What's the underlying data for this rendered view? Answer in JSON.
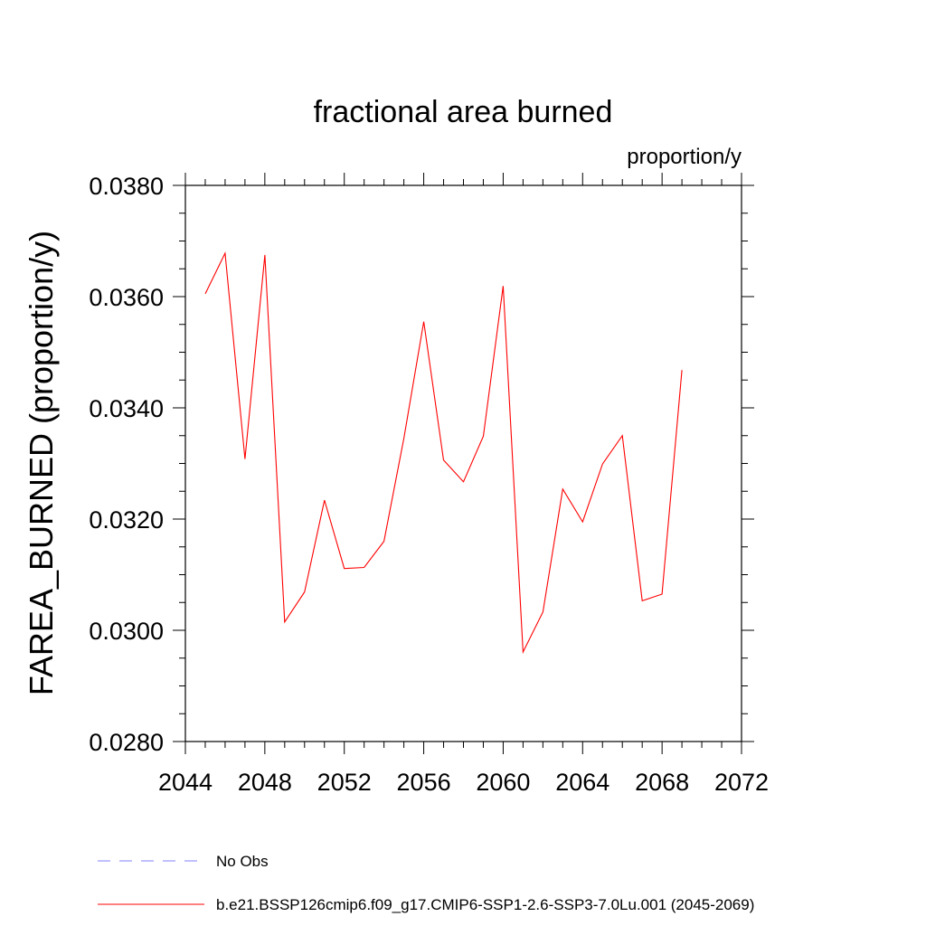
{
  "chart_data": {
    "type": "line",
    "title": "fractional area burned",
    "units_label": "proportion/y",
    "ylabel": "FAREA_BURNED  (proportion/y)",
    "xlabel": "",
    "xlim": [
      2044,
      2072
    ],
    "ylim": [
      0.028,
      0.038
    ],
    "x_ticks": [
      "2044",
      "2048",
      "2052",
      "2056",
      "2060",
      "2064",
      "2068",
      "2072"
    ],
    "y_ticks": [
      "0.0280",
      "0.0300",
      "0.0320",
      "0.0340",
      "0.0360",
      "0.0380"
    ],
    "grid": false,
    "legend_position": "bottom",
    "series": [
      {
        "name": "b.e21.BSSP126cmip6.f09_g17.CMIP6-SSP1-2.6-SSP3-7.0Lu.001 (2045-2069)",
        "color": "#ff0000",
        "dash": "solid",
        "x": [
          2045,
          2046,
          2047,
          2048,
          2049,
          2050,
          2051,
          2052,
          2053,
          2054,
          2055,
          2056,
          2057,
          2058,
          2059,
          2060,
          2061,
          2062,
          2063,
          2064,
          2065,
          2066,
          2067,
          2068,
          2069
        ],
        "values": [
          0.03605,
          0.03678,
          0.03308,
          0.03675,
          0.03015,
          0.03069,
          0.03234,
          0.03111,
          0.03113,
          0.0316,
          0.03345,
          0.03555,
          0.03306,
          0.03267,
          0.03349,
          0.03619,
          0.02961,
          0.03033,
          0.03254,
          0.03195,
          0.03299,
          0.0335,
          0.03053,
          0.03065,
          0.03468
        ]
      }
    ],
    "legend": [
      {
        "label": "No Obs",
        "color": "#8080ff",
        "dash": "dashed"
      },
      {
        "label": "b.e21.BSSP126cmip6.f09_g17.CMIP6-SSP1-2.6-SSP3-7.0Lu.001 (2045-2069)",
        "color": "#ff0000",
        "dash": "solid"
      }
    ]
  }
}
